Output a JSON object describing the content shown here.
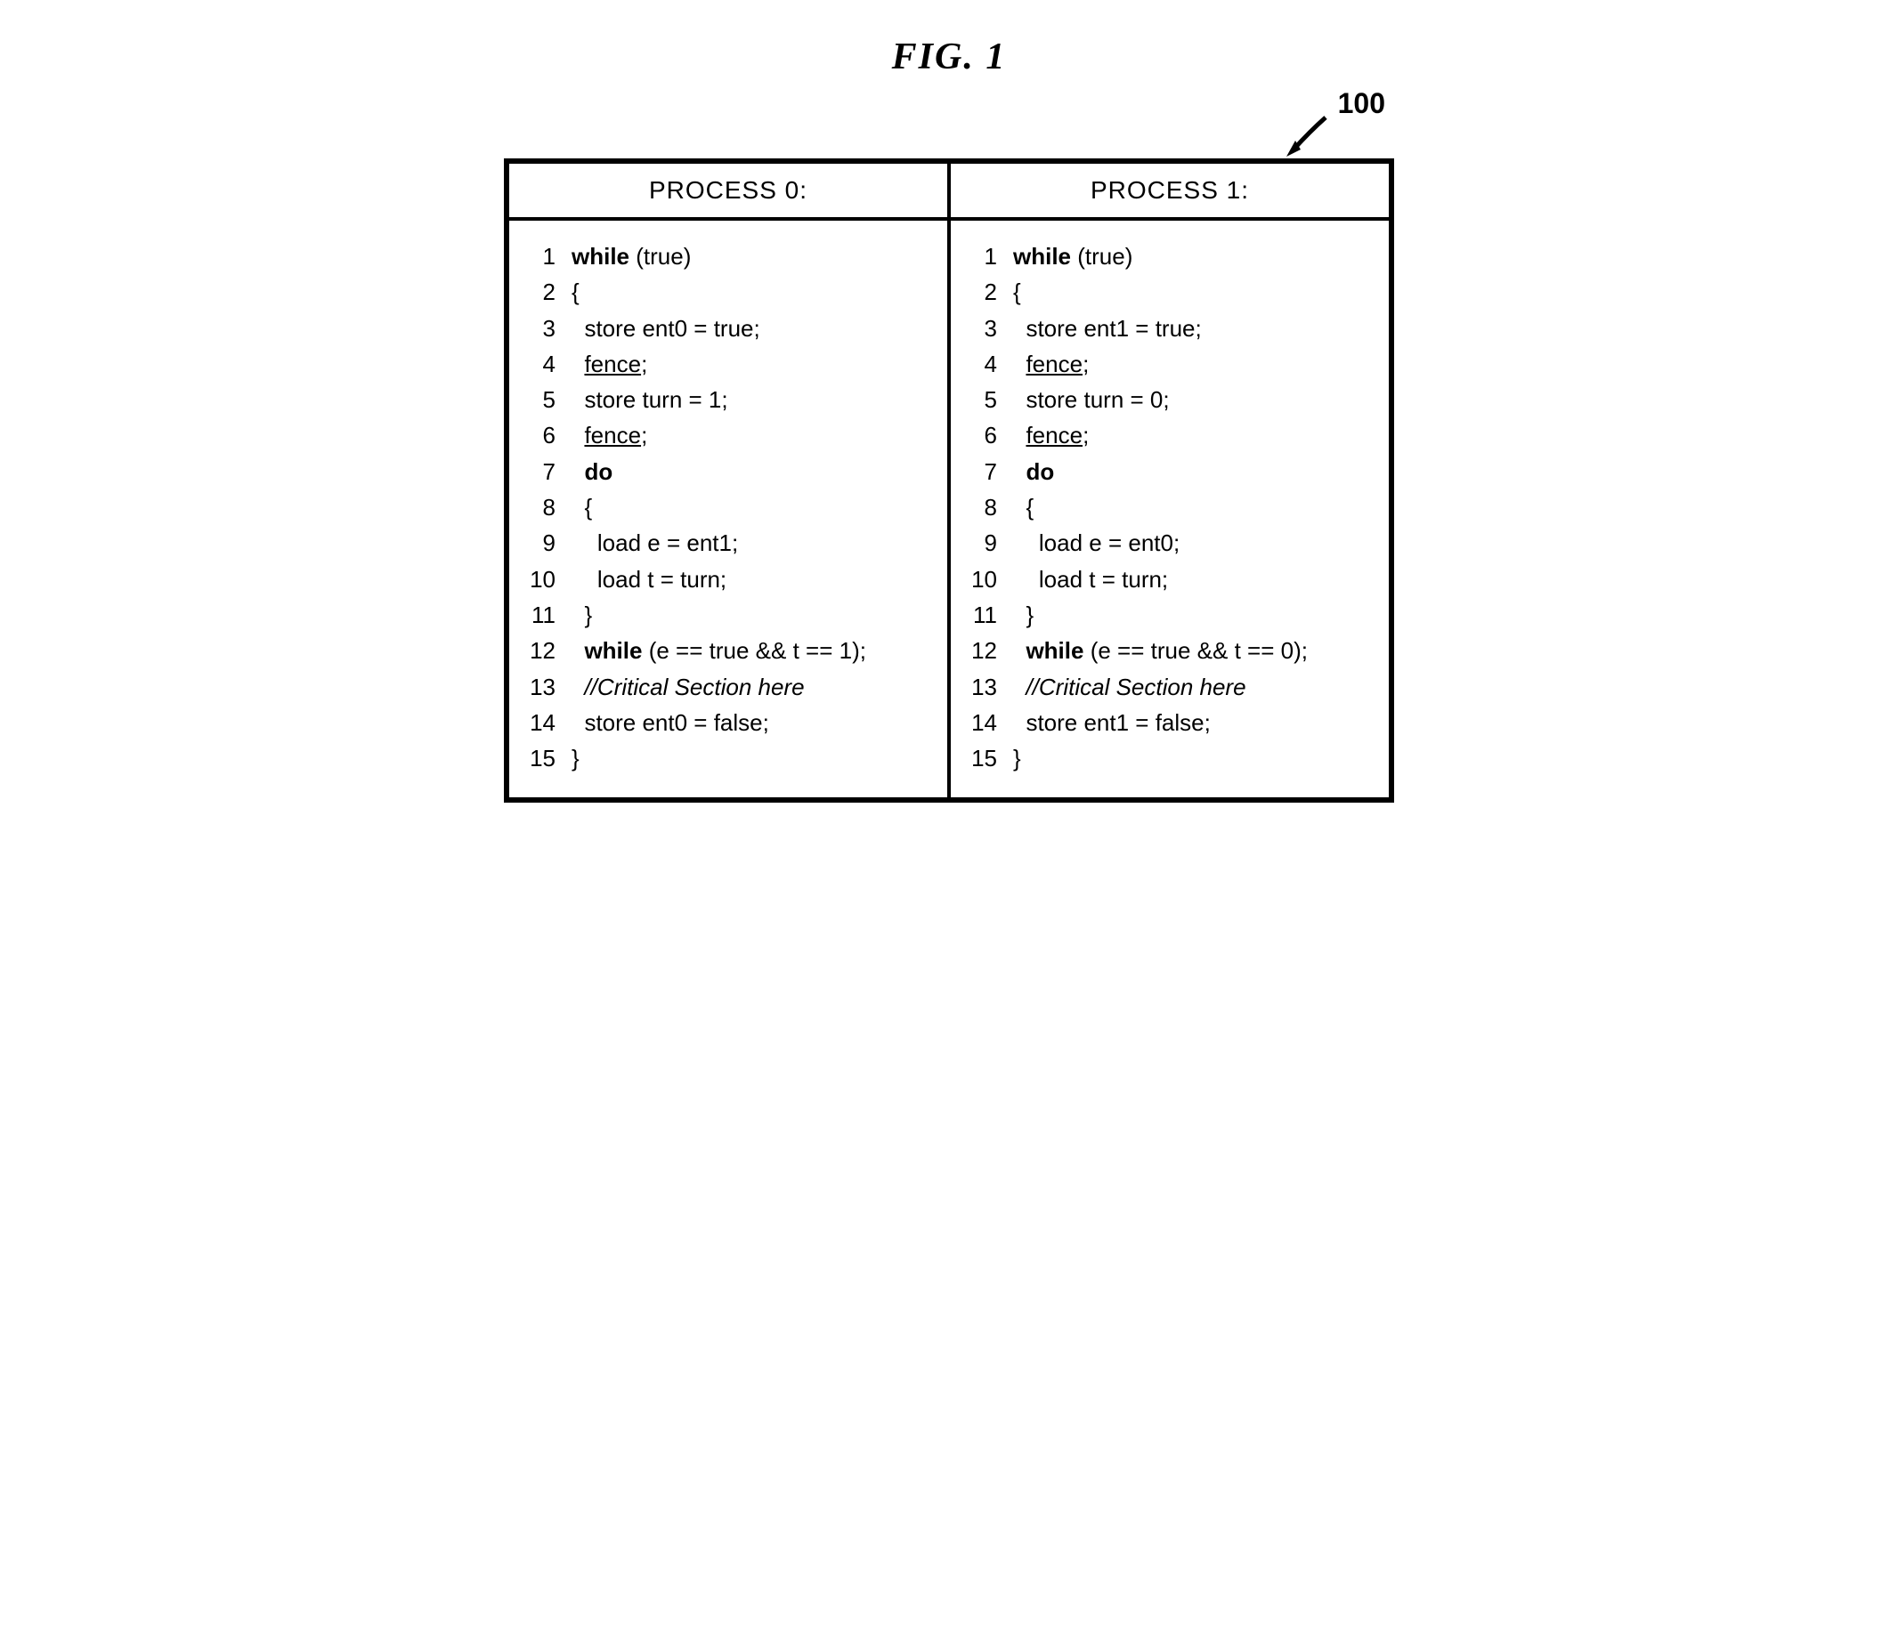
{
  "figure": {
    "title": "FIG.  1",
    "reference_number": "100",
    "border_color": "#000000",
    "background_color": "#ffffff",
    "title_fontsize": 42,
    "header_fontsize": 28,
    "code_fontsize": 26
  },
  "columns": [
    {
      "header": "PROCESS 0:",
      "lines": [
        {
          "num": "1",
          "segments": [
            {
              "text": "while ",
              "bold": true
            },
            {
              "text": "(true)"
            }
          ]
        },
        {
          "num": "2",
          "segments": [
            {
              "text": "{"
            }
          ]
        },
        {
          "num": "3",
          "segments": [
            {
              "text": "  store ent0 = true;"
            }
          ]
        },
        {
          "num": "4",
          "segments": [
            {
              "text": "  "
            },
            {
              "text": "fence",
              "underline": true
            },
            {
              "text": ";"
            }
          ]
        },
        {
          "num": "5",
          "segments": [
            {
              "text": "  store turn = 1;"
            }
          ]
        },
        {
          "num": "6",
          "segments": [
            {
              "text": "  "
            },
            {
              "text": "fence",
              "underline": true
            },
            {
              "text": ";"
            }
          ]
        },
        {
          "num": "7",
          "segments": [
            {
              "text": "  "
            },
            {
              "text": "do",
              "bold": true
            }
          ]
        },
        {
          "num": "8",
          "segments": [
            {
              "text": "  {"
            }
          ]
        },
        {
          "num": "9",
          "segments": [
            {
              "text": "    load e = ent1;"
            }
          ]
        },
        {
          "num": "10",
          "segments": [
            {
              "text": "    load t = turn;"
            }
          ]
        },
        {
          "num": "11",
          "segments": [
            {
              "text": "  }"
            }
          ]
        },
        {
          "num": "12",
          "segments": [
            {
              "text": "  "
            },
            {
              "text": "while ",
              "bold": true
            },
            {
              "text": "(e == true && t == 1);"
            }
          ]
        },
        {
          "num": "13",
          "segments": [
            {
              "text": "  "
            },
            {
              "text": "//Critical Section here",
              "italic": true
            }
          ]
        },
        {
          "num": "14",
          "segments": [
            {
              "text": "  store ent0 = false;"
            }
          ]
        },
        {
          "num": "15",
          "segments": [
            {
              "text": "}"
            }
          ]
        }
      ]
    },
    {
      "header": "PROCESS 1:",
      "lines": [
        {
          "num": "1",
          "segments": [
            {
              "text": "while ",
              "bold": true
            },
            {
              "text": "(true)"
            }
          ]
        },
        {
          "num": "2",
          "segments": [
            {
              "text": "{"
            }
          ]
        },
        {
          "num": "3",
          "segments": [
            {
              "text": "  store ent1 = true;"
            }
          ]
        },
        {
          "num": "4",
          "segments": [
            {
              "text": "  "
            },
            {
              "text": "fence",
              "underline": true
            },
            {
              "text": ";"
            }
          ]
        },
        {
          "num": "5",
          "segments": [
            {
              "text": "  store turn = 0;"
            }
          ]
        },
        {
          "num": "6",
          "segments": [
            {
              "text": "  "
            },
            {
              "text": "fence",
              "underline": true
            },
            {
              "text": ";"
            }
          ]
        },
        {
          "num": "7",
          "segments": [
            {
              "text": "  "
            },
            {
              "text": "do",
              "bold": true
            }
          ]
        },
        {
          "num": "8",
          "segments": [
            {
              "text": "  {"
            }
          ]
        },
        {
          "num": "9",
          "segments": [
            {
              "text": "    load e = ent0;"
            }
          ]
        },
        {
          "num": "10",
          "segments": [
            {
              "text": "    load t = turn;"
            }
          ]
        },
        {
          "num": "11",
          "segments": [
            {
              "text": "  }"
            }
          ]
        },
        {
          "num": "12",
          "segments": [
            {
              "text": "  "
            },
            {
              "text": "while ",
              "bold": true
            },
            {
              "text": "(e == true && t == 0);"
            }
          ]
        },
        {
          "num": "13",
          "segments": [
            {
              "text": "  "
            },
            {
              "text": "//Critical Section here",
              "italic": true
            }
          ]
        },
        {
          "num": "14",
          "segments": [
            {
              "text": "  store ent1 = false;"
            }
          ]
        },
        {
          "num": "15",
          "segments": [
            {
              "text": "}"
            }
          ]
        }
      ]
    }
  ]
}
